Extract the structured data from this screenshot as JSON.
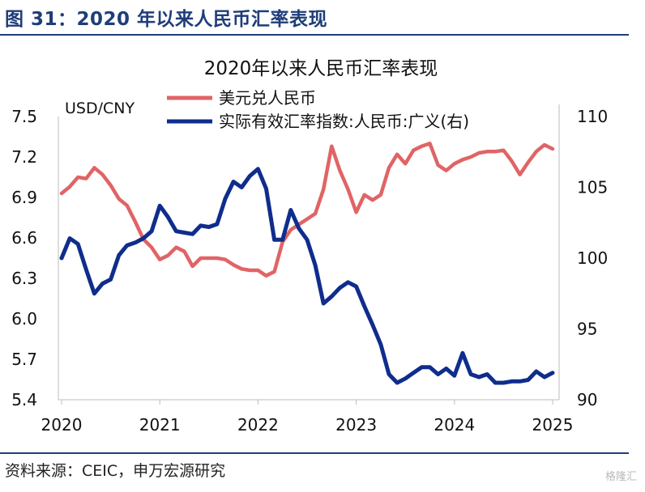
{
  "figure": {
    "title": "图 31：2020 年以来人民币汇率表现",
    "source": "资料来源：CEIC，申万宏源研究",
    "watermark": "格隆汇"
  },
  "chart_data": {
    "type": "line",
    "title": "2020年以来人民币汇率表现",
    "y_left_label": "USD/CNY",
    "y_left_ticks": [
      "7.5",
      "7.2",
      "6.9",
      "6.6",
      "6.3",
      "6.0",
      "5.7",
      "5.4"
    ],
    "y_left_range": [
      5.4,
      7.5
    ],
    "y_right_ticks": [
      "110",
      "105",
      "100",
      "95",
      "90"
    ],
    "y_right_range": [
      90,
      110
    ],
    "x_ticks": [
      "2020",
      "2021",
      "2022",
      "2023",
      "2024",
      "2025"
    ],
    "x_range": [
      2020.0,
      2025.0
    ],
    "legend_position": "top",
    "colors": {
      "usdcny": "#e06466",
      "reer": "#0f2d8c",
      "rule": "#1f3d7a"
    },
    "series": [
      {
        "name": "美元兑人民币",
        "axis": "left",
        "x": [
          2020.0,
          2020.083,
          2020.167,
          2020.25,
          2020.333,
          2020.417,
          2020.5,
          2020.583,
          2020.667,
          2020.75,
          2020.833,
          2020.917,
          2021.0,
          2021.083,
          2021.167,
          2021.25,
          2021.333,
          2021.417,
          2021.5,
          2021.583,
          2021.667,
          2021.75,
          2021.833,
          2021.917,
          2022.0,
          2022.083,
          2022.167,
          2022.25,
          2022.333,
          2022.417,
          2022.5,
          2022.583,
          2022.667,
          2022.75,
          2022.833,
          2022.917,
          2023.0,
          2023.083,
          2023.167,
          2023.25,
          2023.333,
          2023.417,
          2023.5,
          2023.583,
          2023.667,
          2023.75,
          2023.833,
          2023.917,
          2024.0,
          2024.083,
          2024.167,
          2024.25,
          2024.333,
          2024.417,
          2024.5,
          2024.583,
          2024.667,
          2024.75,
          2024.833,
          2024.917,
          2025.0
        ],
        "values": [
          6.93,
          6.98,
          7.05,
          7.04,
          7.12,
          7.07,
          6.99,
          6.89,
          6.84,
          6.72,
          6.59,
          6.53,
          6.44,
          6.47,
          6.53,
          6.5,
          6.39,
          6.45,
          6.45,
          6.45,
          6.44,
          6.4,
          6.37,
          6.36,
          6.36,
          6.32,
          6.35,
          6.57,
          6.66,
          6.7,
          6.74,
          6.78,
          6.96,
          7.28,
          7.1,
          6.96,
          6.79,
          6.92,
          6.88,
          6.92,
          7.12,
          7.22,
          7.15,
          7.25,
          7.28,
          7.3,
          7.14,
          7.1,
          7.15,
          7.18,
          7.2,
          7.23,
          7.24,
          7.24,
          7.25,
          7.17,
          7.07,
          7.16,
          7.24,
          7.29,
          7.26
        ]
      },
      {
        "name": "实际有效汇率指数:人民币:广义(右)",
        "axis": "right",
        "x": [
          2020.0,
          2020.083,
          2020.167,
          2020.25,
          2020.333,
          2020.417,
          2020.5,
          2020.583,
          2020.667,
          2020.75,
          2020.833,
          2020.917,
          2021.0,
          2021.083,
          2021.167,
          2021.25,
          2021.333,
          2021.417,
          2021.5,
          2021.583,
          2021.667,
          2021.75,
          2021.833,
          2021.917,
          2022.0,
          2022.083,
          2022.167,
          2022.25,
          2022.333,
          2022.417,
          2022.5,
          2022.583,
          2022.667,
          2022.75,
          2022.833,
          2022.917,
          2023.0,
          2023.083,
          2023.167,
          2023.25,
          2023.333,
          2023.417,
          2023.5,
          2023.583,
          2023.667,
          2023.75,
          2023.833,
          2023.917,
          2024.0,
          2024.083,
          2024.167,
          2024.25,
          2024.333,
          2024.417,
          2024.5,
          2024.583,
          2024.667,
          2024.75,
          2024.833,
          2024.917,
          2025.0
        ],
        "values": [
          100.0,
          101.4,
          101.0,
          99.2,
          97.5,
          98.2,
          98.5,
          100.2,
          100.9,
          101.1,
          101.4,
          101.9,
          103.7,
          102.9,
          101.9,
          101.8,
          101.7,
          102.3,
          102.2,
          102.4,
          104.2,
          105.4,
          105.0,
          105.8,
          106.3,
          104.9,
          101.3,
          101.3,
          103.4,
          102.1,
          101.3,
          99.5,
          96.8,
          97.3,
          97.9,
          98.3,
          98.0,
          96.6,
          95.3,
          93.9,
          91.8,
          91.2,
          91.5,
          91.9,
          92.3,
          92.3,
          91.8,
          92.2,
          91.7,
          93.3,
          91.8,
          91.6,
          91.8,
          91.2,
          91.2,
          91.3,
          91.3,
          91.4,
          92.0,
          91.6,
          91.9
        ]
      }
    ]
  }
}
